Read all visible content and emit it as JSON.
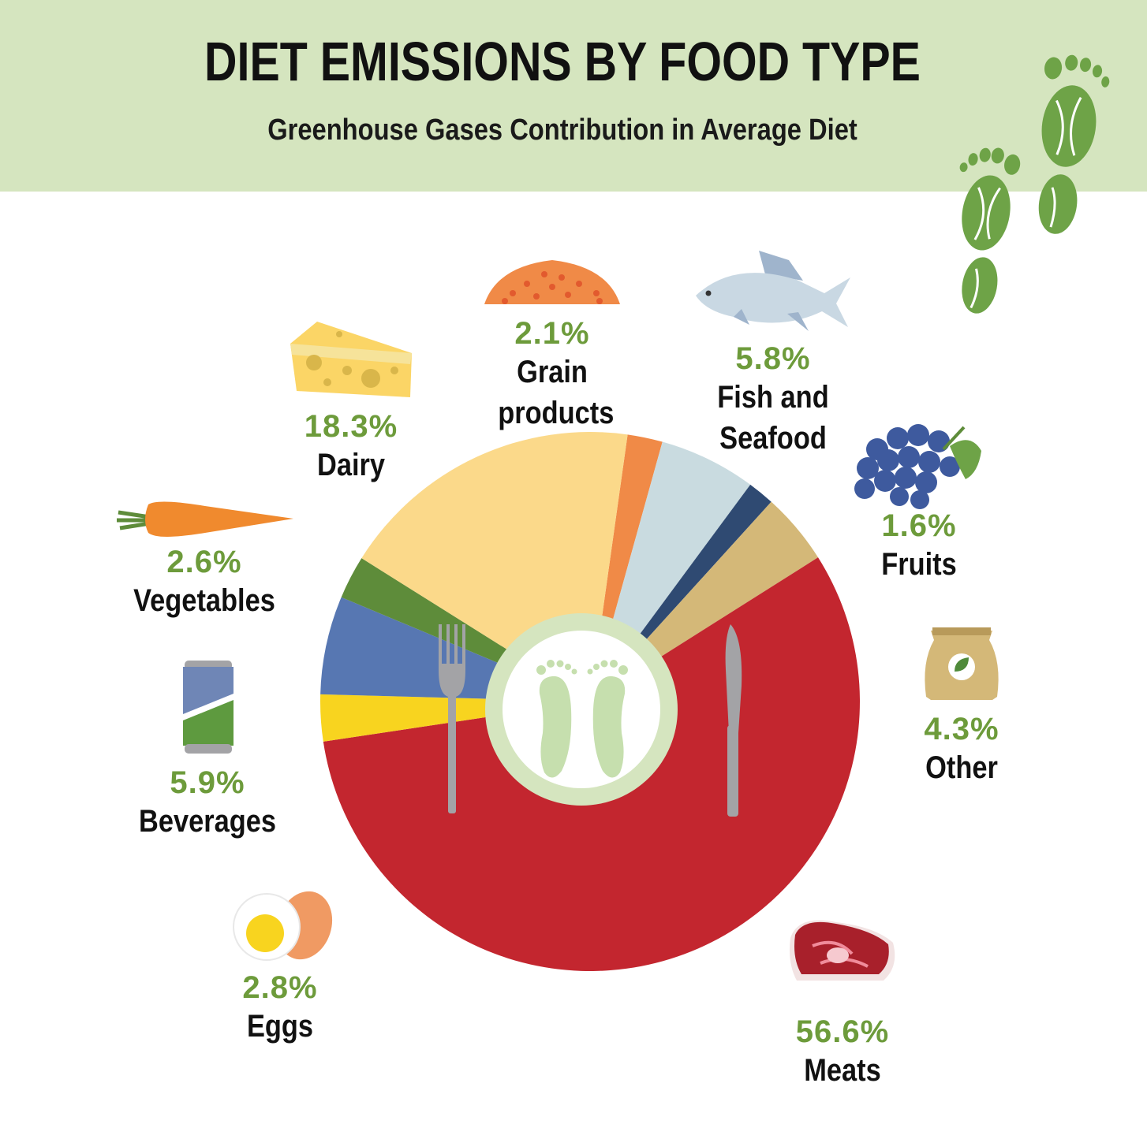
{
  "title": "DIET EMISSIONS BY FOOD TYPE",
  "subtitle": "Greenhouse Gases Contribution in Average Diet",
  "colors": {
    "header_bg": "#d5e5bf",
    "percent_text": "#6d9b3b",
    "label_text": "#111111",
    "plate_ring": "#d5e5bf"
  },
  "chart_data": {
    "type": "pie",
    "title": "DIET EMISSIONS BY FOOD TYPE",
    "subtitle": "Greenhouse Gases Contribution in Average Diet",
    "unit": "%",
    "slices": [
      {
        "name": "Grain products",
        "value": 2.1,
        "label": "2.1%",
        "color": "#f08a47",
        "icon": "grain-pile-icon"
      },
      {
        "name": "Fish and Seafood",
        "value": 5.8,
        "label": "5.8%",
        "color": "#c9dbe0",
        "icon": "fish-icon"
      },
      {
        "name": "Fruits",
        "value": 1.6,
        "label": "1.6%",
        "color": "#2f4a72",
        "icon": "grapes-icon"
      },
      {
        "name": "Other",
        "value": 4.3,
        "label": "4.3%",
        "color": "#d4b878",
        "icon": "sack-icon"
      },
      {
        "name": "Meats",
        "value": 56.6,
        "label": "56.6%",
        "color": "#c3262f",
        "icon": "steak-icon"
      },
      {
        "name": "Eggs",
        "value": 2.8,
        "label": "2.8%",
        "color": "#f8d41f",
        "icon": "egg-icon"
      },
      {
        "name": "Beverages",
        "value": 5.9,
        "label": "5.9%",
        "color": "#5777b2",
        "icon": "soda-can-icon"
      },
      {
        "name": "Vegetables",
        "value": 2.6,
        "label": "2.6%",
        "color": "#5e8c3a",
        "icon": "carrot-icon"
      },
      {
        "name": "Dairy",
        "value": 18.3,
        "label": "18.3%",
        "color": "#fbd98a",
        "icon": "cheese-icon"
      }
    ]
  },
  "labels": {
    "grain": {
      "pct": "2.1%",
      "name1": "Grain",
      "name2": "products"
    },
    "fish": {
      "pct": "5.8%",
      "name1": "Fish and",
      "name2": "Seafood"
    },
    "fruits": {
      "pct": "1.6%",
      "name1": "Fruits"
    },
    "other": {
      "pct": "4.3%",
      "name1": "Other"
    },
    "meats": {
      "pct": "56.6%",
      "name1": "Meats"
    },
    "eggs": {
      "pct": "2.8%",
      "name1": "Eggs"
    },
    "beverages": {
      "pct": "5.9%",
      "name1": "Beverages"
    },
    "vegetables": {
      "pct": "2.6%",
      "name1": "Vegetables"
    },
    "dairy": {
      "pct": "18.3%",
      "name1": "Dairy"
    }
  }
}
